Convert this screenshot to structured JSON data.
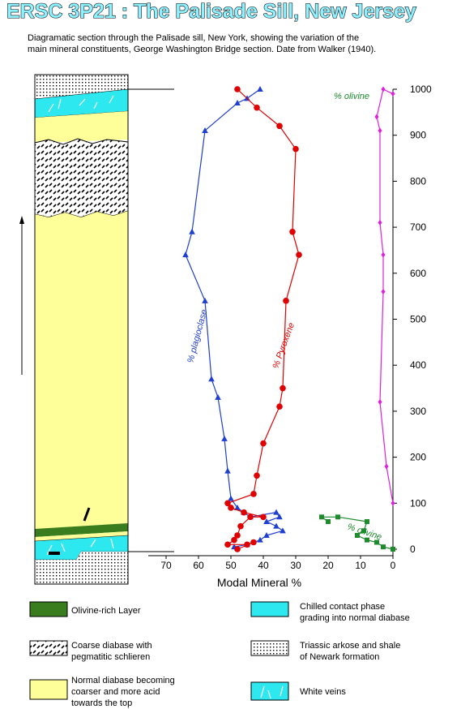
{
  "title": "ERSC 3P21 : The Palisade Sill, New Jersey",
  "caption": [
    "Diagramatic section through the Palisade sill, New York, showing the variation of the",
    "main mineral constituents, George Washington Bridge section. Date from Walker (1940)."
  ],
  "colors": {
    "olivine_layer": "#3a7d1e",
    "chilled_contact": "#2ee8f0",
    "normal_diabase": "#ffff99",
    "white_veins": "#2ee8f0",
    "plagioclase": "#1f3fd0",
    "pyroxene": "#e00000",
    "olivine": "#1f8a2e",
    "olivine_pct_top": "#e01ee0"
  },
  "chart_data": {
    "type": "line",
    "xlabel": "Modal Mineral %",
    "ylabel": "",
    "xlim": [
      70,
      0
    ],
    "ylim": [
      0,
      1000
    ],
    "x_ticks": [
      "70",
      "60",
      "50",
      "40",
      "30",
      "20",
      "10",
      "0"
    ],
    "y_ticks": [
      "0",
      "100",
      "200",
      "300",
      "400",
      "500",
      "600",
      "700",
      "800",
      "900",
      "1000"
    ],
    "series": [
      {
        "name": "% plagioclase",
        "marker": "triangle",
        "points": [
          [
            41,
            1000
          ],
          [
            45,
            980
          ],
          [
            48,
            970
          ],
          [
            58,
            910
          ],
          [
            62,
            690
          ],
          [
            64,
            640
          ],
          [
            58,
            540
          ],
          [
            56,
            370
          ],
          [
            54,
            330
          ],
          [
            52,
            240
          ],
          [
            51,
            170
          ],
          [
            50,
            110
          ],
          [
            48,
            90
          ],
          [
            46,
            80
          ],
          [
            44,
            70
          ],
          [
            36,
            80
          ],
          [
            35,
            70
          ],
          [
            39,
            60
          ],
          [
            36,
            50
          ],
          [
            34,
            40
          ],
          [
            39,
            30
          ],
          [
            41,
            20
          ],
          [
            45,
            10
          ],
          [
            49,
            5
          ]
        ]
      },
      {
        "name": "% Pyroxene",
        "marker": "circle",
        "points": [
          [
            48,
            1000
          ],
          [
            42,
            960
          ],
          [
            35,
            920
          ],
          [
            30,
            870
          ],
          [
            31,
            690
          ],
          [
            29,
            640
          ],
          [
            33,
            540
          ],
          [
            34,
            350
          ],
          [
            35,
            310
          ],
          [
            40,
            230
          ],
          [
            42,
            160
          ],
          [
            43,
            120
          ],
          [
            51,
            100
          ],
          [
            50,
            90
          ],
          [
            46,
            80
          ],
          [
            40,
            70
          ],
          [
            44,
            70
          ],
          [
            47,
            50
          ],
          [
            48,
            30
          ],
          [
            49,
            20
          ],
          [
            51,
            10
          ],
          [
            45,
            10
          ],
          [
            43,
            15
          ],
          [
            48,
            0
          ]
        ]
      },
      {
        "name": "% olivine",
        "marker": "square",
        "points": [
          [
            20,
            60
          ],
          [
            22,
            70
          ],
          [
            17,
            70
          ],
          [
            8,
            60
          ],
          [
            9,
            40
          ],
          [
            11,
            30
          ],
          [
            8,
            20
          ],
          [
            5,
            15
          ],
          [
            3,
            5
          ],
          [
            0,
            0
          ]
        ]
      },
      {
        "name": "% olivine",
        "marker": "diamond",
        "points": [
          [
            0,
            990
          ],
          [
            3,
            1000
          ],
          [
            5,
            940
          ],
          [
            4,
            910
          ],
          [
            4,
            710
          ],
          [
            3,
            640
          ],
          [
            3,
            560
          ],
          [
            4,
            320
          ],
          [
            2,
            180
          ],
          [
            0,
            100
          ]
        ]
      }
    ],
    "annotations": [
      "% plagioclase",
      "% Pyroxene",
      "% olivine",
      "% olivine"
    ]
  },
  "legend": [
    {
      "key": "olivine_layer",
      "label": [
        "Olivine-rich Layer"
      ]
    },
    {
      "key": "chilled_contact",
      "label": [
        "Chilled contact phase",
        "grading into normal diabase"
      ]
    },
    {
      "key": "coarse_diabase",
      "label": [
        "Coarse diabase with",
        "pegmatitic schlieren"
      ]
    },
    {
      "key": "arkose_shale",
      "label": [
        "Triassic arkose and shale",
        "of Newark formation"
      ]
    },
    {
      "key": "normal_diabase",
      "label": [
        "Normal diabase becoming",
        "coarser and more acid",
        "towards the top"
      ]
    },
    {
      "key": "white_veins",
      "label": [
        "White veins"
      ]
    }
  ]
}
